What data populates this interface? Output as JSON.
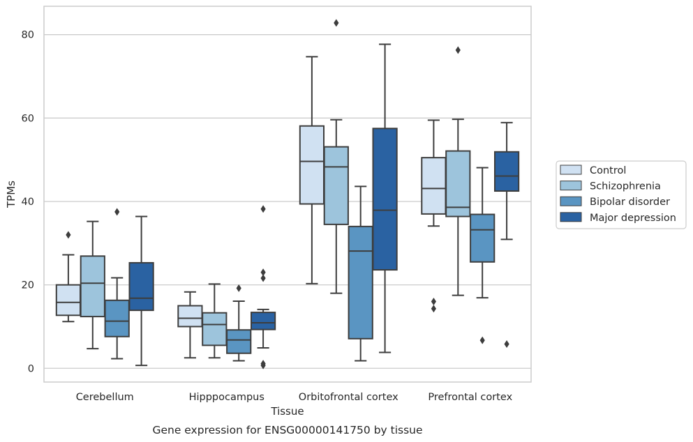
{
  "chart_data": {
    "type": "box",
    "title": "",
    "caption": "Gene expression for ENSG00000141750 by tissue",
    "xlabel": "Tissue",
    "ylabel": "TPMs",
    "ylim": [
      -3.3,
      86.8
    ],
    "yticks": [
      0,
      20,
      40,
      60,
      80
    ],
    "grid": true,
    "legend_position": "right",
    "categories": [
      "Cerebellum",
      "Hipppocampus",
      "Orbitofrontal cortex",
      "Prefrontal cortex"
    ],
    "series": [
      {
        "name": "Control",
        "color": "#d0e1f2",
        "boxes": [
          {
            "whislo": 11.2,
            "q1": 12.7,
            "med": 15.8,
            "q3": 20.0,
            "whishi": 27.2,
            "fliers": [
              32.0
            ]
          },
          {
            "whislo": 2.5,
            "q1": 10.0,
            "med": 12.0,
            "q3": 15.0,
            "whishi": 18.3,
            "fliers": []
          },
          {
            "whislo": 20.3,
            "q1": 39.4,
            "med": 49.6,
            "q3": 58.1,
            "whishi": 74.7,
            "fliers": []
          },
          {
            "whislo": 34.1,
            "q1": 37.0,
            "med": 43.1,
            "q3": 50.5,
            "whishi": 59.5,
            "fliers": [
              16.0,
              14.3
            ]
          }
        ]
      },
      {
        "name": "Schizophrenia",
        "color": "#9dc4dc",
        "boxes": [
          {
            "whislo": 4.7,
            "q1": 12.4,
            "med": 20.4,
            "q3": 26.9,
            "whishi": 35.2,
            "fliers": []
          },
          {
            "whislo": 2.5,
            "q1": 5.5,
            "med": 10.5,
            "q3": 13.3,
            "whishi": 20.2,
            "fliers": []
          },
          {
            "whislo": 18.0,
            "q1": 34.5,
            "med": 48.3,
            "q3": 53.1,
            "whishi": 59.6,
            "fliers": [
              82.8
            ]
          },
          {
            "whislo": 17.5,
            "q1": 36.4,
            "med": 38.6,
            "q3": 52.1,
            "whishi": 59.7,
            "fliers": [
              76.3
            ]
          }
        ]
      },
      {
        "name": "Bipolar disorder",
        "color": "#5a95c2",
        "boxes": [
          {
            "whislo": 2.3,
            "q1": 7.6,
            "med": 11.3,
            "q3": 16.3,
            "whishi": 21.7,
            "fliers": [
              37.5
            ]
          },
          {
            "whislo": 1.8,
            "q1": 3.6,
            "med": 6.8,
            "q3": 9.2,
            "whishi": 16.1,
            "fliers": [
              19.2
            ]
          },
          {
            "whislo": 1.8,
            "q1": 7.1,
            "med": 28.1,
            "q3": 34.0,
            "whishi": 43.6,
            "fliers": []
          },
          {
            "whislo": 16.9,
            "q1": 25.5,
            "med": 33.2,
            "q3": 36.9,
            "whishi": 48.1,
            "fliers": [
              6.7
            ]
          }
        ]
      },
      {
        "name": "Major depression",
        "color": "#2a62a2",
        "boxes": [
          {
            "whislo": 0.7,
            "q1": 13.9,
            "med": 16.8,
            "q3": 25.3,
            "whishi": 36.4,
            "fliers": []
          },
          {
            "whislo": 4.9,
            "q1": 9.3,
            "med": 10.9,
            "q3": 13.4,
            "whishi": 14.1,
            "fliers": [
              38.2,
              23.0,
              21.6,
              1.1,
              0.7
            ]
          },
          {
            "whislo": 3.8,
            "q1": 23.6,
            "med": 37.9,
            "q3": 57.5,
            "whishi": 77.7,
            "fliers": []
          },
          {
            "whislo": 30.9,
            "q1": 42.5,
            "med": 46.1,
            "q3": 51.9,
            "whishi": 58.9,
            "fliers": [
              5.8
            ]
          }
        ]
      }
    ]
  }
}
